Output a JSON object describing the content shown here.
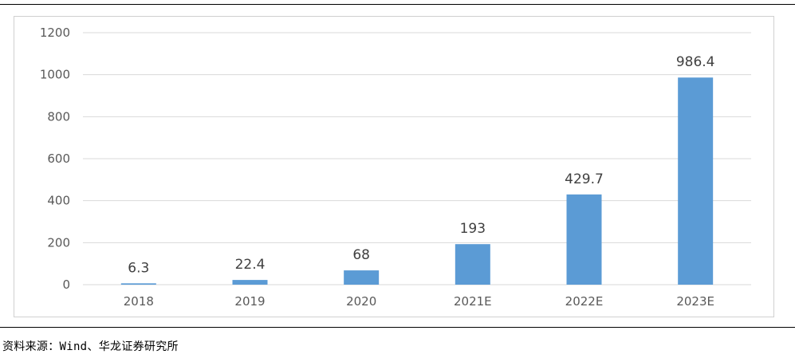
{
  "chart_data": {
    "type": "bar",
    "categories": [
      "2018",
      "2019",
      "2020",
      "2021E",
      "2022E",
      "2023E"
    ],
    "values": [
      6.3,
      22.4,
      68,
      193,
      429.7,
      986.4
    ],
    "data_labels": [
      "6.3",
      "22.4",
      "68",
      "193",
      "429.7",
      "986.4"
    ],
    "ylim": [
      0,
      1200
    ],
    "yticks": [
      0,
      200,
      400,
      600,
      800,
      1000,
      1200
    ],
    "grid": true,
    "legend": "none",
    "colors": {
      "bar": "#5b9bd5",
      "grid": "#d9d9d9",
      "tick_text": "#595959"
    }
  },
  "footer": {
    "source": "资料来源：Wind、华龙证券研究所"
  }
}
